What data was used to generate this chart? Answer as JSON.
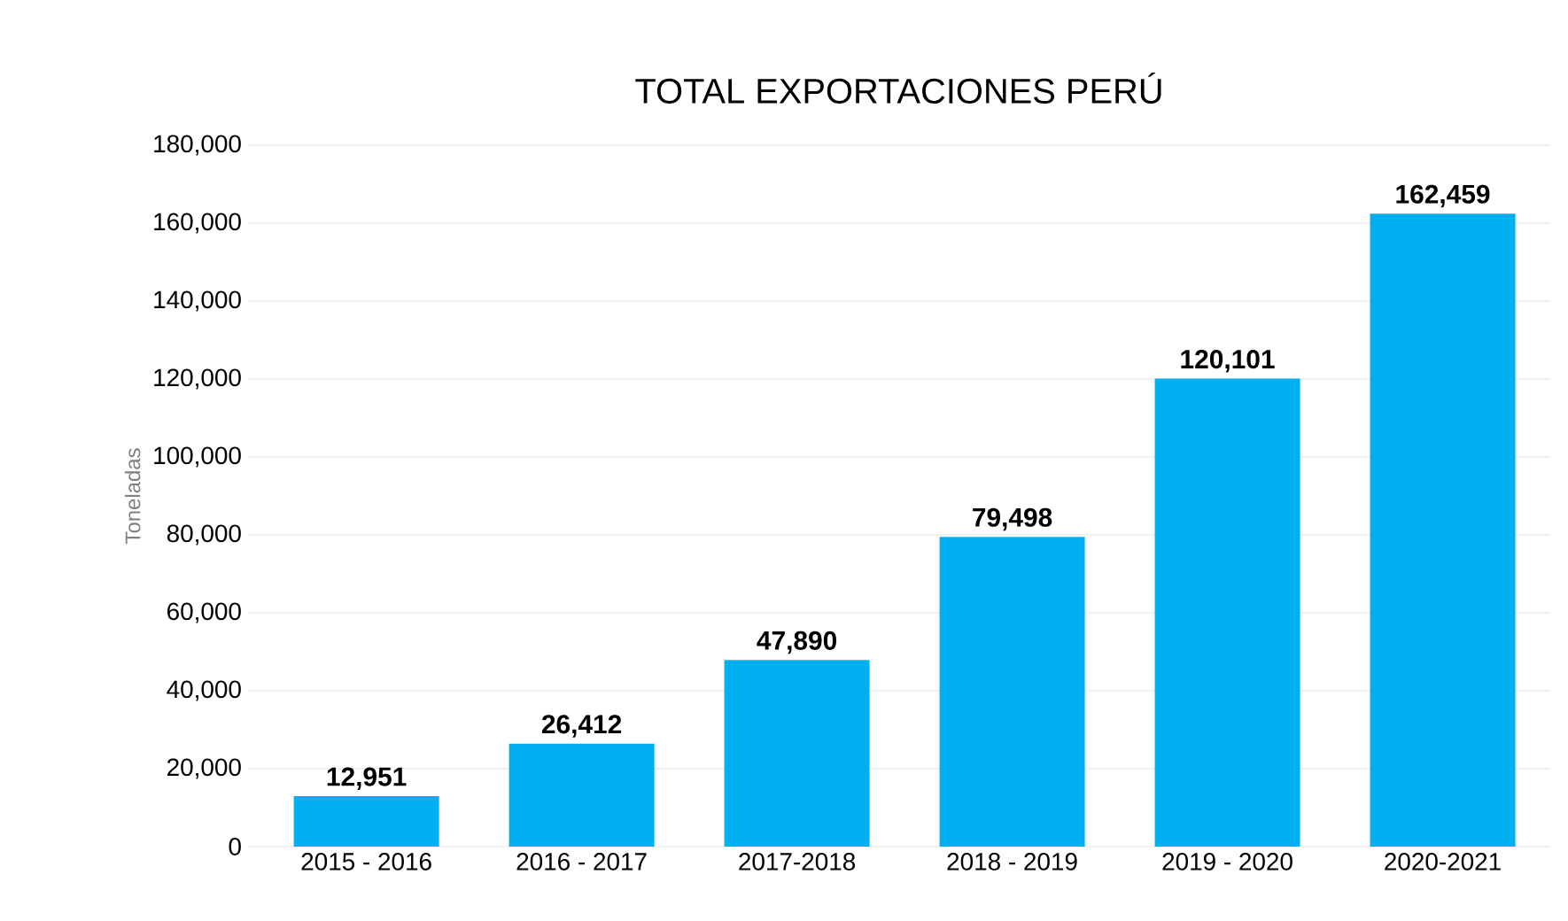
{
  "chart_data": {
    "type": "bar",
    "title": "TOTAL EXPORTACIONES PERÚ",
    "ylabel": "Toneladas",
    "categories": [
      "2015 - 2016",
      "2016 - 2017",
      "2017-2018",
      "2018 - 2019",
      "2019 - 2020",
      "2020-2021"
    ],
    "values": [
      12951,
      26412,
      47890,
      79498,
      120101,
      162459
    ],
    "color": "#00b0f0",
    "value_labels": [
      "12,951",
      "26,412",
      "47,890",
      "79,498",
      "120,101",
      "162,459"
    ],
    "ylim": [
      0,
      180000
    ],
    "yticks": [
      {
        "value": 0,
        "label": "0"
      },
      {
        "value": 20000,
        "label": "20,000"
      },
      {
        "value": 40000,
        "label": "40,000"
      },
      {
        "value": 60000,
        "label": "60,000"
      },
      {
        "value": 80000,
        "label": "80,000"
      },
      {
        "value": 100000,
        "label": "100,000"
      },
      {
        "value": 120000,
        "label": "120,000"
      },
      {
        "value": 140000,
        "label": "140,000"
      },
      {
        "value": 160000,
        "label": "160,000"
      },
      {
        "value": 180000,
        "label": "180,000"
      }
    ],
    "grid": "y"
  }
}
